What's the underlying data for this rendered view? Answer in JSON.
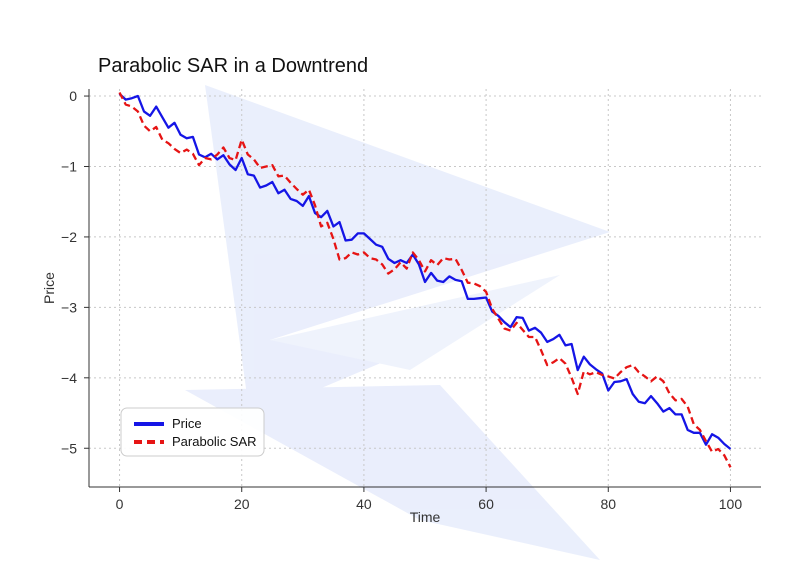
{
  "chart_data": {
    "type": "line",
    "title": "Parabolic SAR in a Downtrend",
    "xlabel": "Time",
    "ylabel": "Price",
    "xlim": [
      -5,
      105
    ],
    "ylim": [
      -5.55,
      0.1
    ],
    "xticks": [
      0,
      20,
      40,
      60,
      80,
      100
    ],
    "yticks": [
      0,
      -1,
      -2,
      -3,
      -4,
      -5
    ],
    "xtick_labels": [
      "0",
      "20",
      "40",
      "60",
      "80",
      "100"
    ],
    "ytick_labels": [
      "0",
      "−1",
      "−2",
      "−3",
      "−4",
      "−5"
    ],
    "grid": true,
    "legend": "lower-left",
    "series": [
      {
        "name": "Price",
        "color": "#1515e6",
        "style": "solid",
        "x": [
          0,
          1,
          2,
          3,
          4,
          5,
          6,
          7,
          8,
          9,
          10,
          11,
          12,
          13,
          14,
          15,
          16,
          17,
          18,
          19,
          20,
          21,
          22,
          23,
          24,
          25,
          26,
          27,
          28,
          29,
          30,
          31,
          32,
          33,
          34,
          35,
          36,
          37,
          38,
          39,
          40,
          41,
          42,
          43,
          44,
          45,
          46,
          47,
          48,
          49,
          50,
          51,
          52,
          53,
          54,
          55,
          56,
          57,
          58,
          59,
          60,
          61,
          62,
          63,
          64,
          65,
          66,
          67,
          68,
          69,
          70,
          71,
          72,
          73,
          74,
          75,
          76,
          77,
          78,
          79,
          80,
          81,
          82,
          83,
          84,
          85,
          86,
          87,
          88,
          89,
          90,
          91,
          92,
          93,
          94,
          95,
          96,
          97,
          98,
          99,
          100
        ],
        "values": [
          0.03,
          -0.05,
          -0.03,
          0.0,
          -0.22,
          -0.28,
          -0.15,
          -0.3,
          -0.45,
          -0.38,
          -0.55,
          -0.6,
          -0.58,
          -0.83,
          -0.87,
          -0.82,
          -0.9,
          -0.84,
          -0.97,
          -1.05,
          -0.88,
          -1.11,
          -1.13,
          -1.3,
          -1.27,
          -1.22,
          -1.38,
          -1.33,
          -1.46,
          -1.49,
          -1.56,
          -1.42,
          -1.66,
          -1.72,
          -1.63,
          -1.85,
          -1.79,
          -2.05,
          -2.04,
          -1.95,
          -1.95,
          -2.03,
          -2.11,
          -2.14,
          -2.31,
          -2.37,
          -2.33,
          -2.37,
          -2.25,
          -2.39,
          -2.64,
          -2.51,
          -2.62,
          -2.64,
          -2.56,
          -2.61,
          -2.63,
          -2.88,
          -2.88,
          -2.87,
          -2.86,
          -3.06,
          -3.12,
          -3.21,
          -3.28,
          -3.14,
          -3.15,
          -3.33,
          -3.29,
          -3.36,
          -3.49,
          -3.45,
          -3.39,
          -3.54,
          -3.52,
          -3.89,
          -3.7,
          -3.81,
          -3.88,
          -3.94,
          -4.18,
          -4.06,
          -4.05,
          -4.02,
          -4.23,
          -4.34,
          -4.36,
          -4.26,
          -4.36,
          -4.48,
          -4.43,
          -4.52,
          -4.52,
          -4.74,
          -4.78,
          -4.78,
          -4.95,
          -4.8,
          -4.85,
          -4.94,
          -5.01
        ]
      },
      {
        "name": "Parabolic SAR",
        "color": "#e61414",
        "style": "dashed",
        "x": [
          0,
          1,
          2,
          3,
          4,
          5,
          6,
          7,
          8,
          9,
          10,
          11,
          12,
          13,
          14,
          15,
          16,
          17,
          18,
          19,
          20,
          21,
          22,
          23,
          24,
          25,
          26,
          27,
          28,
          29,
          30,
          31,
          32,
          33,
          34,
          35,
          36,
          37,
          38,
          39,
          40,
          41,
          42,
          43,
          44,
          45,
          46,
          47,
          48,
          49,
          50,
          51,
          52,
          53,
          54,
          55,
          56,
          57,
          58,
          59,
          60,
          61,
          62,
          63,
          64,
          65,
          66,
          67,
          68,
          69,
          70,
          71,
          72,
          73,
          74,
          75,
          76,
          77,
          78,
          79,
          80,
          81,
          82,
          83,
          84,
          85,
          86,
          87,
          88,
          89,
          90,
          91,
          92,
          93,
          94,
          95,
          96,
          97,
          98,
          99,
          100
        ],
        "values": [
          0.05,
          -0.12,
          -0.15,
          -0.22,
          -0.42,
          -0.5,
          -0.44,
          -0.62,
          -0.67,
          -0.75,
          -0.81,
          -0.76,
          -0.82,
          -0.98,
          -0.88,
          -0.9,
          -0.83,
          -0.73,
          -0.88,
          -0.91,
          -0.62,
          -0.83,
          -0.9,
          -1.02,
          -1.0,
          -0.98,
          -1.14,
          -1.13,
          -1.23,
          -1.32,
          -1.4,
          -1.33,
          -1.55,
          -1.85,
          -1.8,
          -2.03,
          -2.32,
          -2.3,
          -2.22,
          -2.25,
          -2.22,
          -2.3,
          -2.32,
          -2.39,
          -2.52,
          -2.46,
          -2.36,
          -2.45,
          -2.22,
          -2.33,
          -2.49,
          -2.33,
          -2.4,
          -2.3,
          -2.32,
          -2.31,
          -2.47,
          -2.65,
          -2.66,
          -2.7,
          -2.78,
          -3.02,
          -3.16,
          -3.3,
          -3.33,
          -3.22,
          -3.32,
          -3.42,
          -3.42,
          -3.61,
          -3.82,
          -3.78,
          -3.72,
          -3.8,
          -4.0,
          -4.23,
          -3.91,
          -3.95,
          -3.92,
          -3.96,
          -3.98,
          -4.01,
          -3.92,
          -3.85,
          -3.82,
          -3.92,
          -3.98,
          -4.05,
          -3.98,
          -4.05,
          -4.22,
          -4.32,
          -4.3,
          -4.41,
          -4.66,
          -4.74,
          -4.9,
          -5.05,
          -5.01,
          -5.1,
          -5.27
        ]
      }
    ]
  },
  "colors": {
    "price": "#1515e6",
    "sar": "#e61414",
    "watermark": "#e7ecfa"
  }
}
